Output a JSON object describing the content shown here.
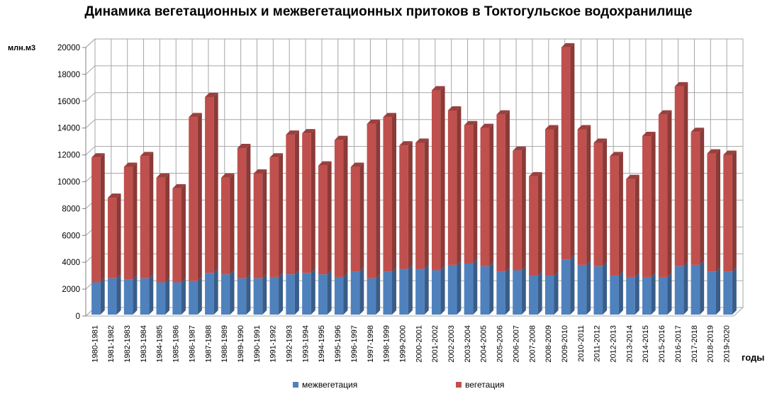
{
  "chart_data": {
    "type": "bar",
    "stacked": true,
    "style": "3d",
    "title": "Динамика вегетационных и межвегетационных притоков в Токтогульское водохранилище",
    "ylabel": "млн.м3",
    "xlabel": "годы",
    "ylim": [
      0,
      20000
    ],
    "yticks": [
      0,
      2000,
      4000,
      6000,
      8000,
      10000,
      12000,
      14000,
      16000,
      18000,
      20000
    ],
    "grid": true,
    "legend_position": "bottom",
    "categories": [
      "1980-1981",
      "1981-1982",
      "1982-1983",
      "1983-1984",
      "1984-1985",
      "1985-1986",
      "1986-1987",
      "1987-1988",
      "1988-1989",
      "1989-1990",
      "1990-1991",
      "1991-1992",
      "1992-1993",
      "1993-1994",
      "1994-1995",
      "1995-1996",
      "1996-1997",
      "1997-1998",
      "1998-1999",
      "1999-2000",
      "2000-2001",
      "2001-2002",
      "2002-2003",
      "2003-2004",
      "2004-2005",
      "2005-2006",
      "2006-2007",
      "2007-2008",
      "2008-2009",
      "2009-2010",
      "2010-2011",
      "2011-2012",
      "2012-2013",
      "2013-2014",
      "2014-2015",
      "2015-2016",
      "2016-2017",
      "2017-2018",
      "2018-2019",
      "2019-2020"
    ],
    "series": [
      {
        "name": "межвегетация",
        "color": "#4f81bd",
        "values": [
          2400,
          2700,
          2600,
          2700,
          2400,
          2400,
          2500,
          3100,
          3000,
          2700,
          2700,
          2800,
          3000,
          3100,
          3000,
          2800,
          3200,
          2700,
          3200,
          3400,
          3400,
          3300,
          3700,
          3800,
          3600,
          3200,
          3300,
          2900,
          2900,
          4100,
          3700,
          3600,
          2900,
          2800,
          2800,
          2800,
          3600,
          3700,
          3200,
          3200
        ]
      },
      {
        "name": "вегетация",
        "color": "#c0504d",
        "values": [
          9300,
          6000,
          8400,
          9100,
          7800,
          7000,
          12200,
          13100,
          7200,
          9700,
          7800,
          8900,
          10400,
          10400,
          8100,
          10200,
          7800,
          11500,
          11500,
          9200,
          9400,
          13400,
          11500,
          10300,
          10300,
          11700,
          8900,
          7400,
          10900,
          15800,
          10100,
          9200,
          8900,
          7300,
          10500,
          12100,
          13400,
          9900,
          8800,
          8700
        ]
      }
    ]
  }
}
